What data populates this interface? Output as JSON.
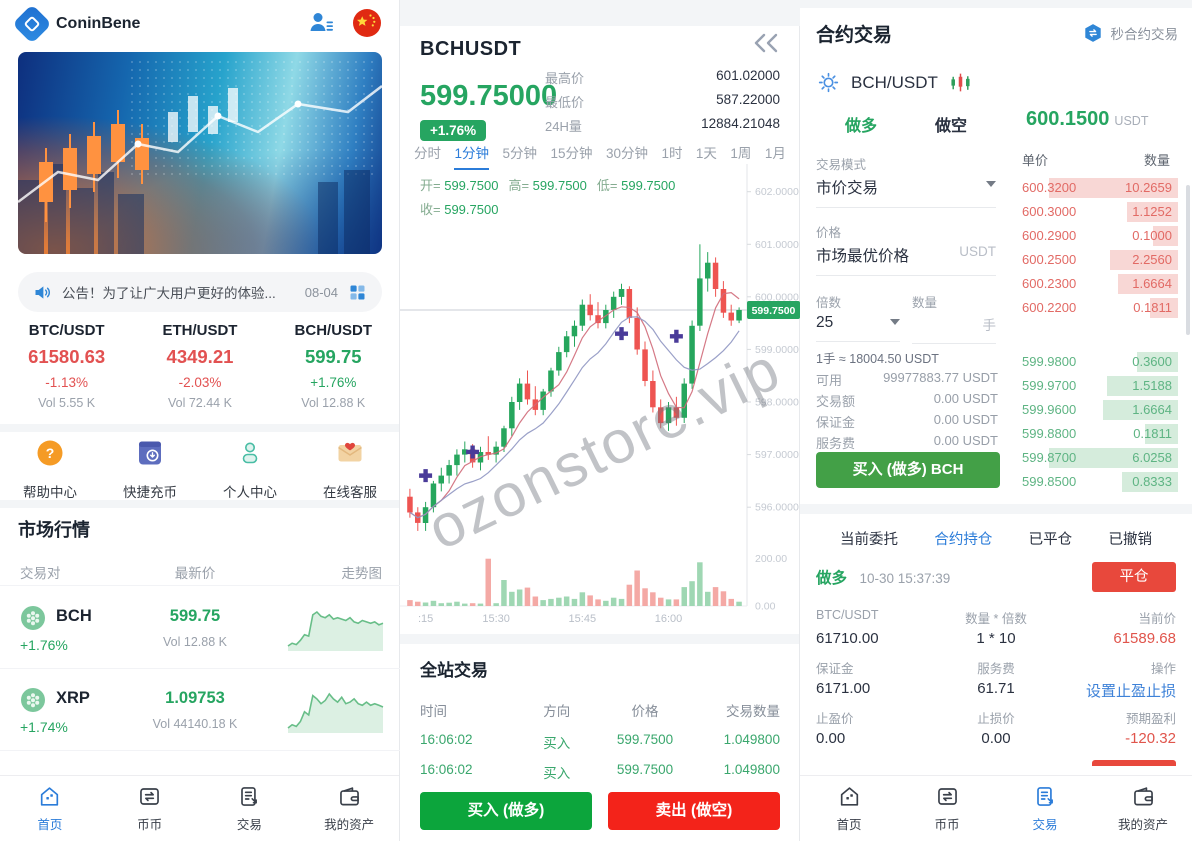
{
  "watermark": "ozonstore.vip",
  "theme": {
    "green": "#26a561",
    "red": "#e8493f",
    "blue": "#2b7cd9"
  },
  "left": {
    "brand": "ConinBene",
    "header_icons": [
      "user-profile-icon",
      "china-flag-icon"
    ],
    "announcement": {
      "icon": "speaker-icon",
      "text": "公告！为了让广大用户更好的体验...",
      "date": "08-04",
      "more_icon": "grid-icon"
    },
    "tickers": [
      {
        "pair": "BTC/USDT",
        "price": "61580.63",
        "change": "-1.13%",
        "vol": "Vol 5.55 K",
        "dir": "down"
      },
      {
        "pair": "ETH/USDT",
        "price": "4349.21",
        "change": "-2.03%",
        "vol": "Vol 72.44 K",
        "dir": "down"
      },
      {
        "pair": "BCH/USDT",
        "price": "599.75",
        "change": "+1.76%",
        "vol": "Vol 12.88 K",
        "dir": "up"
      }
    ],
    "shortcuts": [
      {
        "icon": "help-icon",
        "label": "帮助中心"
      },
      {
        "icon": "recharge-icon",
        "label": "快捷充币"
      },
      {
        "icon": "profile-icon",
        "label": "个人中心"
      },
      {
        "icon": "service-icon",
        "label": "在线客服"
      }
    ],
    "market": {
      "title": "市场行情",
      "headers": [
        "交易对",
        "最新价",
        "走势图"
      ],
      "rows": [
        {
          "icon": "coin-icon",
          "symbol": "BCH",
          "change": "+1.76%",
          "price": "599.75",
          "vol": "Vol 12.88 K",
          "spark": [
            18,
            20,
            19,
            22,
            26,
            25,
            40,
            42,
            39,
            38,
            40,
            37,
            38,
            37,
            36,
            38,
            35,
            34,
            36,
            35,
            34,
            35,
            33,
            34
          ]
        },
        {
          "icon": "coin-icon",
          "symbol": "XRP",
          "change": "+1.74%",
          "price": "1.09753",
          "vol": "Vol 44140.18 K",
          "spark": [
            20,
            22,
            21,
            24,
            30,
            28,
            40,
            38,
            35,
            37,
            41,
            38,
            36,
            39,
            35,
            36,
            38,
            35,
            34,
            36,
            34,
            35,
            34,
            33
          ]
        }
      ]
    },
    "nav": [
      {
        "key": "home",
        "icon": "home-icon",
        "label": "首页",
        "active": true
      },
      {
        "key": "coins",
        "icon": "coins-swap-icon",
        "label": "币币",
        "active": false
      },
      {
        "key": "trade",
        "icon": "trade-doc-icon",
        "label": "交易",
        "active": false
      },
      {
        "key": "wallet",
        "icon": "wallet-icon",
        "label": "我的资产",
        "active": false
      }
    ]
  },
  "middle": {
    "symbol": "BCHUSDT",
    "back_icon": "back-icon",
    "price": "599.75000",
    "change_badge": "+1.76%",
    "stats": [
      {
        "label": "最高价",
        "value": "601.02000"
      },
      {
        "label": "最低价",
        "value": "587.22000"
      },
      {
        "label": "24H量",
        "value": "12884.21048"
      }
    ],
    "intervals": [
      "分时",
      "1分钟",
      "5分钟",
      "15分钟",
      "30分钟",
      "1时",
      "1天",
      "1周",
      "1月"
    ],
    "active_interval": "1分钟",
    "ohlc": [
      {
        "k": "开",
        "v": "599.7500"
      },
      {
        "k": "高",
        "v": "599.7500"
      },
      {
        "k": "低",
        "v": "599.7500"
      },
      {
        "k": "收",
        "v": "599.7500"
      }
    ],
    "trades": {
      "title": "全站交易",
      "headers": [
        "时间",
        "方向",
        "价格",
        "交易数量"
      ],
      "rows": [
        [
          "16:06:02",
          "买入",
          "599.7500",
          "1.049800"
        ],
        [
          "16:06:02",
          "买入",
          "599.7500",
          "1.049800"
        ]
      ]
    },
    "buy_button": "买入 (做多)",
    "sell_button": "卖出 (做空)"
  },
  "chart_data": {
    "type": "candlestick",
    "symbol": "BCHUSDT",
    "interval": "1分钟",
    "y_ticks": [
      602,
      601,
      600,
      599,
      598,
      597,
      596
    ],
    "y_range": [
      595.3,
      602.45
    ],
    "volume_ticks": [
      200,
      0
    ],
    "volume_max": 220,
    "current_price": 599.75,
    "x_labels": [
      {
        "i": 2,
        "label": ":15"
      },
      {
        "i": 11,
        "label": "15:30"
      },
      {
        "i": 22,
        "label": "15:45"
      },
      {
        "i": 33,
        "label": "16:00"
      }
    ],
    "markers": [
      {
        "i": 2,
        "price": 596.6
      },
      {
        "i": 8,
        "price": 597.05
      },
      {
        "i": 27,
        "price": 599.3
      },
      {
        "i": 34,
        "price": 599.25
      }
    ],
    "candles": [
      [
        596.2,
        596.35,
        595.8,
        595.9
      ],
      [
        595.9,
        596.0,
        595.55,
        595.7
      ],
      [
        595.7,
        596.1,
        595.55,
        596.0
      ],
      [
        596.0,
        596.5,
        595.9,
        596.45
      ],
      [
        596.45,
        596.75,
        596.3,
        596.6
      ],
      [
        596.6,
        596.9,
        596.45,
        596.8
      ],
      [
        596.8,
        597.1,
        596.6,
        597.0
      ],
      [
        597.0,
        597.25,
        596.85,
        597.1
      ],
      [
        597.1,
        597.2,
        596.75,
        596.85
      ],
      [
        596.85,
        597.15,
        596.7,
        597.05
      ],
      [
        597.05,
        597.35,
        596.9,
        597.0
      ],
      [
        597.0,
        597.25,
        596.85,
        597.15
      ],
      [
        597.15,
        597.55,
        597.05,
        597.5
      ],
      [
        597.5,
        598.1,
        597.35,
        598.0
      ],
      [
        598.0,
        598.45,
        597.85,
        598.35
      ],
      [
        598.35,
        598.6,
        597.95,
        598.05
      ],
      [
        598.05,
        598.3,
        597.75,
        597.85
      ],
      [
        597.85,
        598.25,
        597.75,
        598.2
      ],
      [
        598.2,
        598.65,
        598.1,
        598.6
      ],
      [
        598.6,
        599.05,
        598.5,
        598.95
      ],
      [
        598.95,
        599.35,
        598.85,
        599.25
      ],
      [
        599.25,
        599.55,
        599.05,
        599.45
      ],
      [
        599.45,
        599.95,
        599.35,
        599.85
      ],
      [
        599.85,
        600.05,
        599.55,
        599.65
      ],
      [
        599.65,
        599.9,
        599.4,
        599.5
      ],
      [
        599.5,
        599.85,
        599.4,
        599.75
      ],
      [
        599.75,
        600.1,
        599.6,
        600.0
      ],
      [
        600.0,
        600.25,
        599.85,
        600.15
      ],
      [
        600.15,
        600.2,
        599.5,
        599.6
      ],
      [
        599.6,
        599.8,
        598.9,
        599.0
      ],
      [
        599.0,
        599.15,
        598.3,
        598.4
      ],
      [
        598.4,
        598.6,
        597.8,
        597.9
      ],
      [
        597.9,
        598.05,
        597.5,
        597.6
      ],
      [
        597.6,
        598.0,
        597.45,
        597.9
      ],
      [
        597.9,
        598.1,
        597.55,
        597.7
      ],
      [
        597.7,
        598.45,
        597.6,
        598.35
      ],
      [
        598.35,
        599.55,
        598.25,
        599.45
      ],
      [
        599.45,
        601.0,
        599.35,
        600.35
      ],
      [
        600.35,
        600.85,
        600.1,
        600.65
      ],
      [
        600.65,
        600.75,
        600.0,
        600.15
      ],
      [
        600.15,
        600.3,
        599.6,
        599.7
      ],
      [
        599.7,
        599.85,
        599.45,
        599.55
      ],
      [
        599.55,
        599.8,
        599.5,
        599.75
      ]
    ],
    "volumes": [
      25,
      18,
      15,
      22,
      12,
      14,
      18,
      10,
      12,
      10,
      200,
      12,
      110,
      60,
      70,
      78,
      40,
      25,
      30,
      35,
      40,
      30,
      58,
      45,
      28,
      22,
      35,
      30,
      90,
      150,
      75,
      58,
      35,
      28,
      28,
      80,
      105,
      185,
      60,
      80,
      62,
      30,
      18
    ]
  },
  "right": {
    "title": "合约交易",
    "mode_icon": "seconds-contract-icon",
    "mode_link": "秒合约交易",
    "pair_icons": [
      "gear-icon",
      "candles-icon"
    ],
    "pair": "BCH/USDT",
    "side_tabs": [
      {
        "label": "做多",
        "active": true
      },
      {
        "label": "做空",
        "active": false
      }
    ],
    "form": {
      "mode_label": "交易模式",
      "mode_value": "市价交易",
      "price_label": "价格",
      "price_value": "市场最优价格",
      "price_unit": "USDT",
      "lever_label": "倍数",
      "lever_value": "25",
      "qty_label": "数量",
      "qty_unit": "手",
      "lot_hint": "1手 ≈ 18004.50 USDT",
      "rows": [
        {
          "label": "可用",
          "value": "99977883.77 USDT"
        },
        {
          "label": "交易额",
          "value": "0.00 USDT"
        },
        {
          "label": "保证金",
          "value": "0.00 USDT"
        },
        {
          "label": "服务费",
          "value": "0.00 USDT"
        }
      ],
      "submit": "买入 (做多) BCH"
    },
    "orderbook": {
      "price": "600.1500",
      "unit": "USDT",
      "headers": [
        "单价",
        "数量"
      ],
      "asks": [
        {
          "p": "600.3200",
          "q": "10.2659"
        },
        {
          "p": "600.3000",
          "q": "1.1252"
        },
        {
          "p": "600.2900",
          "q": "0.1000"
        },
        {
          "p": "600.2500",
          "q": "2.2560"
        },
        {
          "p": "600.2300",
          "q": "1.6664"
        },
        {
          "p": "600.2200",
          "q": "0.1811"
        }
      ],
      "bids": [
        {
          "p": "599.9800",
          "q": "0.3600"
        },
        {
          "p": "599.9700",
          "q": "1.5188"
        },
        {
          "p": "599.9600",
          "q": "1.6664"
        },
        {
          "p": "599.8800",
          "q": "0.1811"
        },
        {
          "p": "599.8700",
          "q": "6.0258"
        },
        {
          "p": "599.8500",
          "q": "0.8333"
        }
      ]
    },
    "position_tabs": [
      {
        "label": "当前委托",
        "active": false
      },
      {
        "label": "合约持仓",
        "active": true
      },
      {
        "label": "已平仓",
        "active": false
      },
      {
        "label": "已撤销",
        "active": false
      }
    ],
    "position": {
      "side": "做多",
      "time": "10-30 15:37:39",
      "close_btn": "平仓",
      "cells": [
        {
          "label": "BTC/USDT",
          "value": "61710.00",
          "cls": "dark"
        },
        {
          "label": "数量 * 倍数",
          "value": "1 * 10",
          "cls": "dark"
        },
        {
          "label": "当前价",
          "value": "61589.68",
          "cls": "red"
        },
        {
          "label": "保证金",
          "value": "6171.00",
          "cls": "dark"
        },
        {
          "label": "服务费",
          "value": "61.71",
          "cls": "dark"
        },
        {
          "label": "操作",
          "value": "设置止盈止损",
          "cls": "link"
        },
        {
          "label": "止盈价",
          "value": "0.00",
          "cls": "dark"
        },
        {
          "label": "止损价",
          "value": "0.00",
          "cls": "dark"
        },
        {
          "label": "预期盈利",
          "value": "-120.32",
          "cls": "red"
        }
      ]
    },
    "nav": [
      {
        "key": "home",
        "icon": "home-icon",
        "label": "首页",
        "active": false
      },
      {
        "key": "coins",
        "icon": "coins-swap-icon",
        "label": "币币",
        "active": false
      },
      {
        "key": "trade",
        "icon": "trade-doc-icon",
        "label": "交易",
        "active": true
      },
      {
        "key": "wallet",
        "icon": "wallet-icon",
        "label": "我的资产",
        "active": false
      }
    ]
  }
}
